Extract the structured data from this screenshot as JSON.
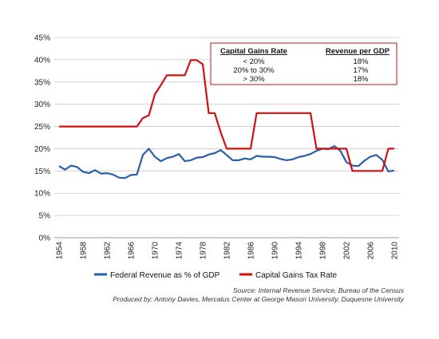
{
  "chart_data": {
    "type": "line",
    "x": [
      1954,
      1955,
      1956,
      1957,
      1958,
      1959,
      1960,
      1961,
      1962,
      1963,
      1964,
      1965,
      1966,
      1967,
      1968,
      1969,
      1970,
      1971,
      1972,
      1973,
      1974,
      1975,
      1976,
      1977,
      1978,
      1979,
      1980,
      1981,
      1982,
      1983,
      1984,
      1985,
      1986,
      1987,
      1988,
      1989,
      1990,
      1991,
      1992,
      1993,
      1994,
      1995,
      1996,
      1997,
      1998,
      1999,
      2000,
      2001,
      2002,
      2003,
      2004,
      2005,
      2006,
      2007,
      2008,
      2009,
      2010
    ],
    "xticks": [
      "1954",
      "1958",
      "1962",
      "1966",
      "1970",
      "1974",
      "1978",
      "1982",
      "1986",
      "1990",
      "1994",
      "1998",
      "2002",
      "2006",
      "2010"
    ],
    "yticks": [
      "0%",
      "5%",
      "10%",
      "15%",
      "20%",
      "25%",
      "30%",
      "35%",
      "40%",
      "45%"
    ],
    "ylim": [
      0,
      45
    ],
    "series": [
      {
        "name": "Federal Revenue as % of GDP",
        "color": "#2a5ea8",
        "values": [
          16.1,
          15.3,
          16.2,
          15.9,
          14.8,
          14.5,
          15.2,
          14.4,
          14.5,
          14.2,
          13.5,
          13.4,
          14.1,
          14.2,
          18.6,
          20.0,
          18.2,
          17.2,
          17.9,
          18.2,
          18.8,
          17.2,
          17.4,
          18.0,
          18.1,
          18.7,
          19.0,
          19.7,
          18.6,
          17.4,
          17.4,
          17.8,
          17.6,
          18.4,
          18.2,
          18.2,
          18.1,
          17.7,
          17.4,
          17.6,
          18.1,
          18.4,
          18.8,
          19.5,
          20.0,
          19.9,
          20.6,
          19.5,
          17.0,
          16.2,
          16.1,
          17.3,
          18.2,
          18.6,
          17.5,
          14.9,
          15.1
        ]
      },
      {
        "name": "Capital Gains Tax Rate",
        "color": "#d01010",
        "values": [
          25,
          25,
          25,
          25,
          25,
          25,
          25,
          25,
          25,
          25,
          25,
          25,
          25,
          25,
          26.9,
          27.5,
          32.2,
          34.3,
          36.5,
          36.5,
          36.5,
          36.5,
          39.9,
          39.9,
          39.0,
          28.0,
          28.0,
          23.7,
          20.0,
          20.0,
          20.0,
          20.0,
          20.0,
          28.0,
          28.0,
          28.0,
          28.0,
          28.0,
          28.0,
          28.0,
          28.0,
          28.0,
          28.0,
          20.0,
          20.0,
          20.0,
          20.0,
          20.0,
          20.0,
          15.0,
          15.0,
          15.0,
          15.0,
          15.0,
          15.0,
          20.0,
          20.0
        ]
      }
    ],
    "legend": {
      "position": "bottom"
    }
  },
  "table": {
    "col1_header": "Capital Gains Rate",
    "col2_header": "Revenue per GDP",
    "rows": [
      {
        "rate": "< 20%",
        "revenue": "18%"
      },
      {
        "rate": "20% to 30%",
        "revenue": "17%"
      },
      {
        "rate": "> 30%",
        "revenue": "18%"
      }
    ],
    "border_color": "#c01818"
  },
  "source": {
    "line1": "Source: Internal Revenue Service, Bureau of the Census",
    "line2": "Produced by: Antony Davies, Mercatus Center at George Mason University, Duquesne University"
  }
}
